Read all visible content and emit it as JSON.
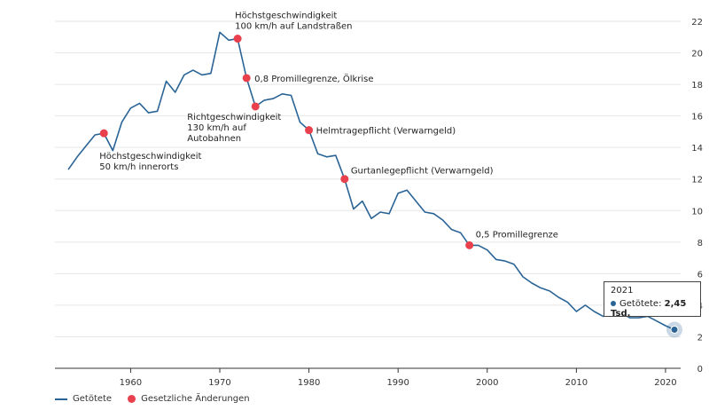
{
  "colors": {
    "series": "#2a6496",
    "event": "#e8404c",
    "grid": "#e6e6e6",
    "axis": "#333333"
  },
  "chart_data": {
    "type": "line",
    "xlim": [
      1953,
      2021
    ],
    "ylim": [
      0,
      22
    ],
    "x_ticks": [
      1960,
      1970,
      1980,
      1990,
      2000,
      2010,
      2020
    ],
    "y_ticks": [
      0,
      2,
      4,
      6,
      8,
      10,
      12,
      14,
      16,
      18,
      20,
      22
    ],
    "grid": true,
    "legend_position": "bottom-left",
    "series": [
      {
        "name": "Getötete",
        "x": [
          1953,
          1954,
          1955,
          1956,
          1957,
          1958,
          1959,
          1960,
          1961,
          1962,
          1963,
          1964,
          1965,
          1966,
          1967,
          1968,
          1969,
          1970,
          1971,
          1972,
          1973,
          1974,
          1975,
          1976,
          1977,
          1978,
          1979,
          1980,
          1981,
          1982,
          1983,
          1984,
          1985,
          1986,
          1987,
          1988,
          1989,
          1990,
          1991,
          1992,
          1993,
          1994,
          1995,
          1996,
          1997,
          1998,
          1999,
          2000,
          2001,
          2002,
          2003,
          2004,
          2005,
          2006,
          2007,
          2008,
          2009,
          2010,
          2011,
          2012,
          2013,
          2014,
          2015,
          2016,
          2017,
          2018,
          2019,
          2020,
          2021
        ],
        "values": [
          12.6,
          13.4,
          14.1,
          14.8,
          14.9,
          13.8,
          15.6,
          16.5,
          16.8,
          16.2,
          16.3,
          18.2,
          17.5,
          18.6,
          18.9,
          18.6,
          18.7,
          21.3,
          20.8,
          20.9,
          18.4,
          16.6,
          17.0,
          17.1,
          17.4,
          17.3,
          15.6,
          15.1,
          13.6,
          13.4,
          13.5,
          12.0,
          10.1,
          10.6,
          9.5,
          9.9,
          9.8,
          11.1,
          11.3,
          10.6,
          9.9,
          9.8,
          9.4,
          8.8,
          8.6,
          7.8,
          7.8,
          7.5,
          6.9,
          6.8,
          6.6,
          5.8,
          5.4,
          5.1,
          4.9,
          4.5,
          4.2,
          3.6,
          4.0,
          3.6,
          3.3,
          3.4,
          3.5,
          3.2,
          3.2,
          3.3,
          3.0,
          2.7,
          2.45
        ]
      }
    ],
    "events": {
      "name": "Gesetzliche Änderungen",
      "items": [
        {
          "x": 1957,
          "y": 14.9,
          "lines": [
            "Höchstgeschwindigkeit",
            "50 km/h innerorts"
          ]
        },
        {
          "x": 1972,
          "y": 20.9,
          "lines": [
            "Höchstgeschwindigkeit",
            "100 km/h auf Landstraßen"
          ]
        },
        {
          "x": 1973,
          "y": 18.4,
          "lines": [
            "0,8 Promillegrenze, Ölkrise"
          ]
        },
        {
          "x": 1974,
          "y": 16.6,
          "lines": [
            "Richtgeschwindigkeit",
            "130 km/h auf",
            "Autobahnen"
          ]
        },
        {
          "x": 1980,
          "y": 15.1,
          "lines": [
            "Helmtragepflicht (Verwarngeld)"
          ]
        },
        {
          "x": 1984,
          "y": 12.0,
          "lines": [
            "Gurtanlegepflicht (Verwarngeld)"
          ]
        },
        {
          "x": 1998,
          "y": 7.8,
          "lines": [
            "0,5 Promillegrenze"
          ]
        }
      ]
    }
  },
  "tooltip": {
    "year": "2021",
    "series_label": "Getötete:",
    "value_text": "2,45 Tsd."
  },
  "legend": {
    "items": [
      {
        "label": "Getötete"
      },
      {
        "label": "Gesetzliche Änderungen"
      }
    ]
  }
}
